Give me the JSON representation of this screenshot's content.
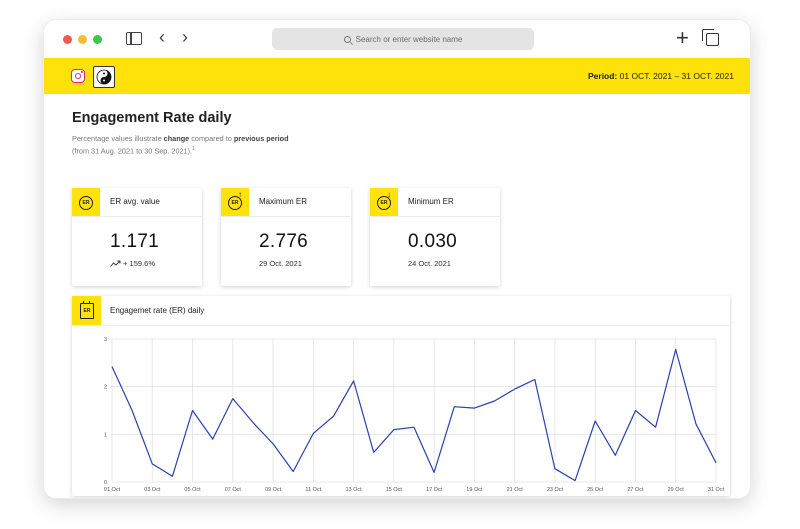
{
  "browser": {
    "url_placeholder": "Search or enter website name"
  },
  "header": {
    "period_label": "Period:",
    "period_value": "01 OCT. 2021 – 31 OCT. 2021"
  },
  "page": {
    "title": "Engagement Rate daily",
    "subtitle_part1": "Percentage values illustrate ",
    "subtitle_bold1": "change",
    "subtitle_part2": " compared to ",
    "subtitle_bold2": "previous period",
    "subtitle_line2": "(from 31 Aug. 2021 to 30 Sep. 2021).",
    "subtitle_footnote": "1"
  },
  "kpis": [
    {
      "icon_label": "ER",
      "title": "ER avg. value",
      "value": "1.171",
      "sub": "+ 159.6%"
    },
    {
      "icon_label": "ER",
      "title": "Maximum ER",
      "value": "2.776",
      "sub": "29 Oct. 2021"
    },
    {
      "icon_label": "ER",
      "title": "Minimum ER",
      "value": "0.030",
      "sub": "24 Oct. 2021"
    }
  ],
  "chart": {
    "icon_label": "ER",
    "title": "Engagemet rate (ER) daily"
  },
  "colors": {
    "accent_yellow": "#ffe20a",
    "line_blue": "#2b3fb0"
  },
  "chart_data": {
    "type": "line",
    "title": "Engagemet rate (ER) daily",
    "xlabel": "",
    "ylabel": "",
    "ylim": [
      0,
      3
    ],
    "yticks": [
      "0",
      "1",
      "2",
      "3"
    ],
    "xtick_labels": [
      "01 Oct",
      "03 Oct",
      "05 Oct",
      "07 Oct",
      "09 Oct",
      "11 Oct",
      "13 Oct",
      "15 Oct",
      "17 Oct",
      "19 Oct",
      "21 Oct",
      "23 Oct",
      "25 Oct",
      "27 Oct",
      "29 Oct",
      "31 Oct"
    ],
    "grid": true,
    "x": [
      "01 Oct",
      "02 Oct",
      "03 Oct",
      "04 Oct",
      "05 Oct",
      "06 Oct",
      "07 Oct",
      "08 Oct",
      "09 Oct",
      "10 Oct",
      "11 Oct",
      "12 Oct",
      "13 Oct",
      "14 Oct",
      "15 Oct",
      "16 Oct",
      "17 Oct",
      "18 Oct",
      "19 Oct",
      "20 Oct",
      "21 Oct",
      "22 Oct",
      "23 Oct",
      "24 Oct",
      "25 Oct",
      "26 Oct",
      "27 Oct",
      "28 Oct",
      "29 Oct",
      "30 Oct",
      "31 Oct"
    ],
    "series": [
      {
        "values": [
          2.42,
          1.5,
          0.38,
          0.12,
          1.5,
          0.9,
          1.75,
          1.25,
          0.8,
          0.22,
          1.02,
          1.38,
          2.12,
          0.62,
          1.1,
          1.15,
          0.2,
          1.58,
          1.55,
          1.7,
          1.95,
          2.15,
          0.28,
          0.03,
          1.28,
          0.56,
          1.5,
          1.15,
          2.78,
          1.22,
          0.4
        ]
      }
    ]
  }
}
